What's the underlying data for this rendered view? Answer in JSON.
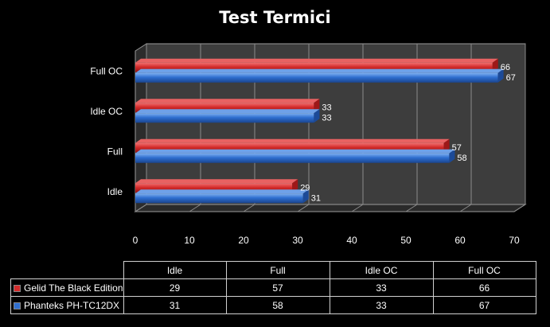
{
  "chart_data": {
    "type": "bar",
    "orientation": "horizontal",
    "title": "Test Termici",
    "categories": [
      "Idle",
      "Full",
      "Idle OC",
      "Full OC"
    ],
    "series": [
      {
        "name": "Gelid The Black Edition",
        "values": [
          29,
          57,
          33,
          66
        ],
        "color": "#d42b2b"
      },
      {
        "name": "Phanteks PH-TC12DX",
        "values": [
          31,
          58,
          33,
          67
        ],
        "color": "#2f6fd0"
      }
    ],
    "xlim": [
      0,
      70
    ],
    "xticks": [
      0,
      10,
      20,
      30,
      40,
      50,
      60,
      70
    ],
    "grid": true,
    "legend": "data-table-below"
  }
}
